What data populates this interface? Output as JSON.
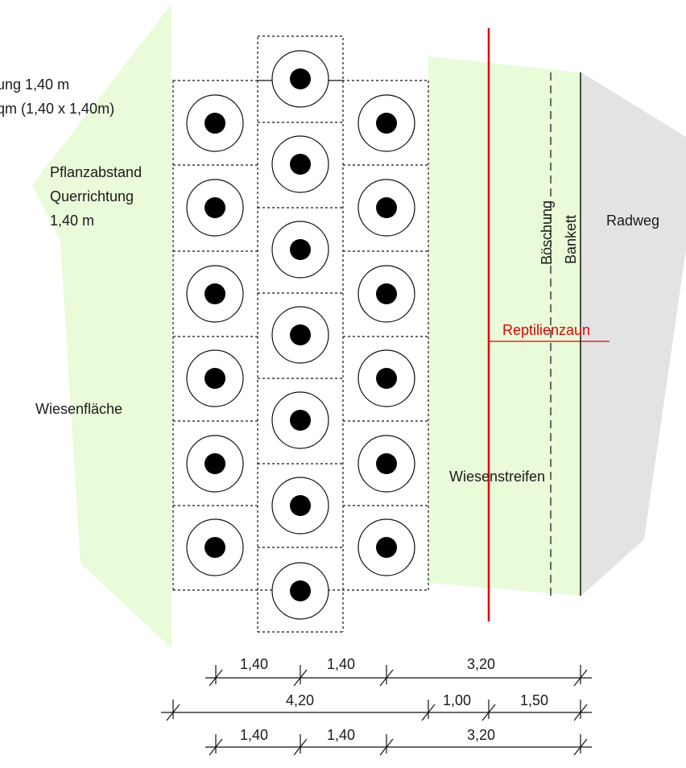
{
  "notes": {
    "plant_spacing_line1": "ung 1,40 m",
    "plant_spacing_line2": "qm (1,40 x 1,40m)",
    "cross_spacing_1": "Pflanzabstand",
    "cross_spacing_2": "Querrichtung",
    "cross_spacing_3": "1,40 m"
  },
  "labels": {
    "wiesenflaeche": "Wiesenfläche",
    "wiesenstreifen": "Wiesenstreifen",
    "boeschung": "Böschung",
    "bankett": "Bankett",
    "radweg": "Radweg",
    "reptilienzaun": "Reptilienzaun"
  },
  "dimensions": {
    "row1": [
      "1,40",
      "1,40",
      "3,20"
    ],
    "row2": [
      "4,20",
      "1,00",
      "1,50"
    ],
    "row3": [
      "1,40",
      "1,40",
      "3,20"
    ]
  },
  "colors": {
    "meadow": "#e9fbd9",
    "road": "#e3e3e3",
    "fence": "#e00000",
    "plant": "#000000"
  },
  "plants": {
    "left_column": 6,
    "middle_column": 7,
    "right_column": 6
  }
}
